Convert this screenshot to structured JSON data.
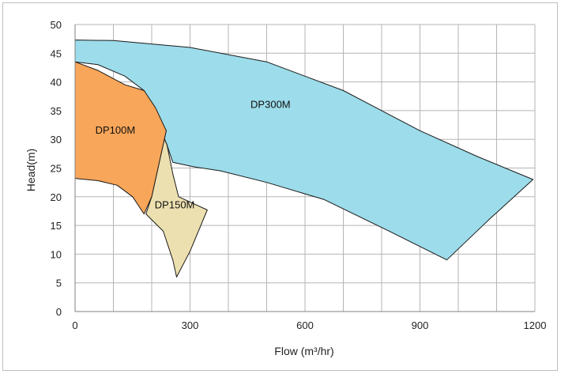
{
  "chart_data": {
    "type": "area",
    "xlabel": "Flow (m³/hr)",
    "ylabel": "Head(m)",
    "xlim": [
      0,
      1200
    ],
    "ylim": [
      0,
      50
    ],
    "x_ticks": [
      0,
      300,
      600,
      900,
      1200
    ],
    "x_tick_labels": [
      "0",
      "300",
      "600",
      "900",
      "1200"
    ],
    "y_ticks": [
      0,
      5,
      10,
      15,
      20,
      25,
      30,
      35,
      40,
      45,
      50
    ],
    "y_tick_labels": [
      "0",
      "5",
      "10",
      "15",
      "20",
      "25",
      "30",
      "35",
      "40",
      "45",
      "50"
    ],
    "x_grid_step": 100,
    "grid": true,
    "series": [
      {
        "name": "DP300M",
        "color": "#9ddcea",
        "label_at": [
          510,
          35.5
        ],
        "polygon": [
          [
            0,
            47.3
          ],
          [
            100,
            47.2
          ],
          [
            300,
            46.0
          ],
          [
            500,
            43.5
          ],
          [
            700,
            38.5
          ],
          [
            900,
            31.5
          ],
          [
            1050,
            27.0
          ],
          [
            1195,
            23.0
          ],
          [
            1080,
            16.0
          ],
          [
            970,
            9.0
          ],
          [
            820,
            14.0
          ],
          [
            650,
            19.5
          ],
          [
            500,
            22.5
          ],
          [
            380,
            24.5
          ],
          [
            310,
            25.2
          ],
          [
            255,
            26.0
          ],
          [
            240,
            29.0
          ],
          [
            215,
            33.0
          ],
          [
            180,
            38.5
          ],
          [
            130,
            41.0
          ],
          [
            60,
            43.0
          ],
          [
            0,
            43.5
          ]
        ]
      },
      {
        "name": "DP150M",
        "color": "#ede0b0",
        "label_at": [
          260,
          18.0
        ],
        "polygon": [
          [
            180,
            38.5
          ],
          [
            215,
            33.0
          ],
          [
            240,
            29.0
          ],
          [
            255,
            24.0
          ],
          [
            270,
            20.0
          ],
          [
            345,
            17.7
          ],
          [
            300,
            10.5
          ],
          [
            265,
            6.0
          ],
          [
            255,
            9.0
          ],
          [
            230,
            14.0
          ],
          [
            185,
            17.0
          ],
          [
            200,
            20.0
          ],
          [
            238,
            31.5
          ]
        ]
      },
      {
        "name": "DP100M",
        "color": "#f8a65a",
        "label_at": [
          105,
          31.0
        ],
        "polygon": [
          [
            0,
            43.5
          ],
          [
            60,
            42.0
          ],
          [
            130,
            39.5
          ],
          [
            180,
            38.5
          ],
          [
            210,
            35.5
          ],
          [
            238,
            31.5
          ],
          [
            200,
            20.0
          ],
          [
            180,
            17.0
          ],
          [
            150,
            20.0
          ],
          [
            110,
            22.0
          ],
          [
            60,
            22.8
          ],
          [
            0,
            23.2
          ]
        ]
      }
    ]
  }
}
